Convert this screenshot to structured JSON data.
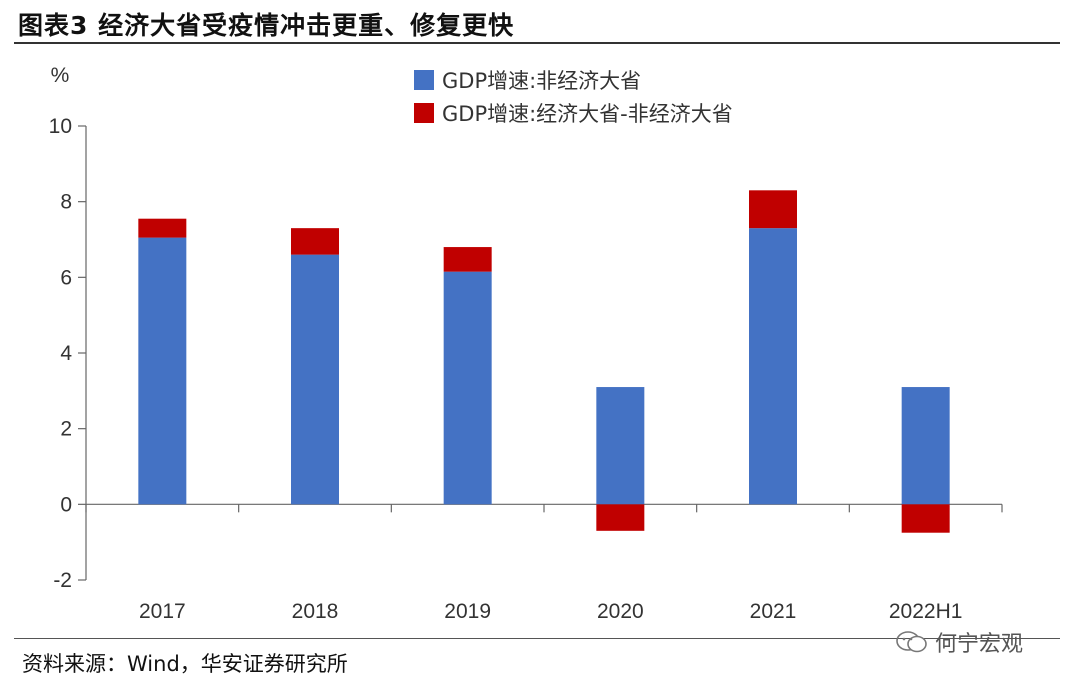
{
  "header": {
    "title": "图表3  经济大省受疫情冲击更重、修复更快"
  },
  "footer": {
    "source": "资料来源：Wind，华安证券研究所",
    "watermark": "何宁宏观"
  },
  "chart_data": {
    "type": "bar",
    "stacked": true,
    "title": "",
    "xlabel": "",
    "ylabel": "%",
    "ylim": [
      -2,
      10
    ],
    "yticks": [
      -2,
      0,
      2,
      4,
      6,
      8,
      10
    ],
    "ytick_labels": [
      "-2",
      "0",
      "2",
      "4",
      "6",
      "8",
      "10"
    ],
    "grid": false,
    "legend_position": "top",
    "categories": [
      "2017",
      "2018",
      "2019",
      "2020",
      "2021",
      "2022H1"
    ],
    "series": [
      {
        "name": "GDP增速:非经济大省",
        "color": "#4472C4",
        "values": [
          7.05,
          6.6,
          6.15,
          3.1,
          7.3,
          3.1
        ]
      },
      {
        "name": "GDP增速:经济大省-非经济大省",
        "color": "#C00000",
        "values": [
          0.5,
          0.7,
          0.65,
          -0.7,
          1.0,
          -0.75
        ]
      }
    ]
  }
}
